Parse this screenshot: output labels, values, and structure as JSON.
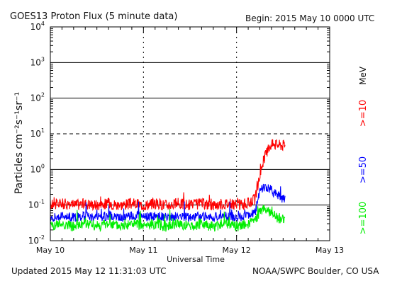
{
  "header": {
    "title": "GOES13 Proton Flux (5 minute data)",
    "begin": "Begin: 2015 May 10 0000 UTC"
  },
  "footer": {
    "updated": "Updated 2015 May 12 11:31:03 UTC",
    "credit": "NOAA/SWPC Boulder, CO USA"
  },
  "colors": {
    "background": "#ffffff",
    "axes": "#000000",
    "series_ge10": "#ff0000",
    "series_ge50": "#0000ff",
    "series_ge100": "#00ee00"
  },
  "chart_data": {
    "type": "line",
    "title": "GOES13 Proton Flux (5 minute data)",
    "xlabel": "Universal Time",
    "ylabel": "Particles cm⁻²s⁻¹sr⁻¹",
    "yscale": "log",
    "units_label": "MeV",
    "x_unit": "days since 2015 May 10 0000 UTC",
    "xlim": [
      0,
      3
    ],
    "ylim": [
      0.01,
      10000
    ],
    "x_tick_labels": [
      "May 10",
      "May 11",
      "May 12",
      "May 13"
    ],
    "x_ticks": [
      0,
      1,
      2,
      3
    ],
    "y_ticks": [
      {
        "value": 0.01,
        "base": "10",
        "exp": "-2"
      },
      {
        "value": 0.1,
        "base": "10",
        "exp": "-1"
      },
      {
        "value": 1,
        "base": "10",
        "exp": "0"
      },
      {
        "value": 10,
        "base": "10",
        "exp": "1"
      },
      {
        "value": 100,
        "base": "10",
        "exp": "2"
      },
      {
        "value": 1000,
        "base": "10",
        "exp": "3"
      },
      {
        "value": 10000,
        "base": "10",
        "exp": "4"
      }
    ],
    "gridlines_solid": [
      0.1,
      1,
      100,
      1000
    ],
    "threshold_dashed": 10,
    "vertical_dotted_days": [
      1,
      2
    ],
    "series": [
      {
        "name": ">=10",
        "color": "#ff0000",
        "points": [
          [
            0.0,
            0.1
          ],
          [
            0.12,
            0.11
          ],
          [
            0.25,
            0.1
          ],
          [
            0.38,
            0.11
          ],
          [
            0.5,
            0.1
          ],
          [
            0.62,
            0.11
          ],
          [
            0.75,
            0.1
          ],
          [
            0.88,
            0.11
          ],
          [
            1.0,
            0.1
          ],
          [
            1.12,
            0.11
          ],
          [
            1.25,
            0.1
          ],
          [
            1.38,
            0.11
          ],
          [
            1.5,
            0.1
          ],
          [
            1.62,
            0.11
          ],
          [
            1.75,
            0.1
          ],
          [
            1.88,
            0.11
          ],
          [
            2.0,
            0.1
          ],
          [
            2.12,
            0.11
          ],
          [
            2.2,
            0.15
          ],
          [
            2.24,
            0.5
          ],
          [
            2.28,
            1.5
          ],
          [
            2.32,
            3.0
          ],
          [
            2.36,
            4.8
          ],
          [
            2.4,
            5.2
          ],
          [
            2.44,
            5.0
          ],
          [
            2.48,
            4.8
          ],
          [
            2.52,
            4.7
          ]
        ]
      },
      {
        "name": ">=50",
        "color": "#0000ff",
        "points": [
          [
            0.0,
            0.045
          ],
          [
            0.12,
            0.05
          ],
          [
            0.25,
            0.045
          ],
          [
            0.38,
            0.05
          ],
          [
            0.5,
            0.045
          ],
          [
            0.62,
            0.05
          ],
          [
            0.75,
            0.045
          ],
          [
            0.88,
            0.05
          ],
          [
            1.0,
            0.045
          ],
          [
            1.12,
            0.05
          ],
          [
            1.25,
            0.045
          ],
          [
            1.38,
            0.05
          ],
          [
            1.5,
            0.045
          ],
          [
            1.62,
            0.05
          ],
          [
            1.75,
            0.045
          ],
          [
            1.88,
            0.05
          ],
          [
            2.0,
            0.045
          ],
          [
            2.12,
            0.05
          ],
          [
            2.2,
            0.06
          ],
          [
            2.24,
            0.2
          ],
          [
            2.28,
            0.32
          ],
          [
            2.32,
            0.3
          ],
          [
            2.36,
            0.28
          ],
          [
            2.4,
            0.22
          ],
          [
            2.44,
            0.2
          ],
          [
            2.48,
            0.16
          ],
          [
            2.52,
            0.15
          ]
        ]
      },
      {
        "name": ">=100",
        "color": "#00ee00",
        "points": [
          [
            0.0,
            0.025
          ],
          [
            0.12,
            0.03
          ],
          [
            0.25,
            0.025
          ],
          [
            0.38,
            0.03
          ],
          [
            0.5,
            0.025
          ],
          [
            0.62,
            0.03
          ],
          [
            0.75,
            0.025
          ],
          [
            0.88,
            0.03
          ],
          [
            1.0,
            0.025
          ],
          [
            1.12,
            0.03
          ],
          [
            1.25,
            0.025
          ],
          [
            1.38,
            0.03
          ],
          [
            1.5,
            0.025
          ],
          [
            1.62,
            0.03
          ],
          [
            1.75,
            0.025
          ],
          [
            1.88,
            0.03
          ],
          [
            2.0,
            0.025
          ],
          [
            2.12,
            0.03
          ],
          [
            2.2,
            0.035
          ],
          [
            2.24,
            0.06
          ],
          [
            2.28,
            0.08
          ],
          [
            2.32,
            0.07
          ],
          [
            2.36,
            0.06
          ],
          [
            2.4,
            0.05
          ],
          [
            2.44,
            0.045
          ],
          [
            2.48,
            0.04
          ],
          [
            2.52,
            0.04
          ]
        ]
      }
    ]
  }
}
